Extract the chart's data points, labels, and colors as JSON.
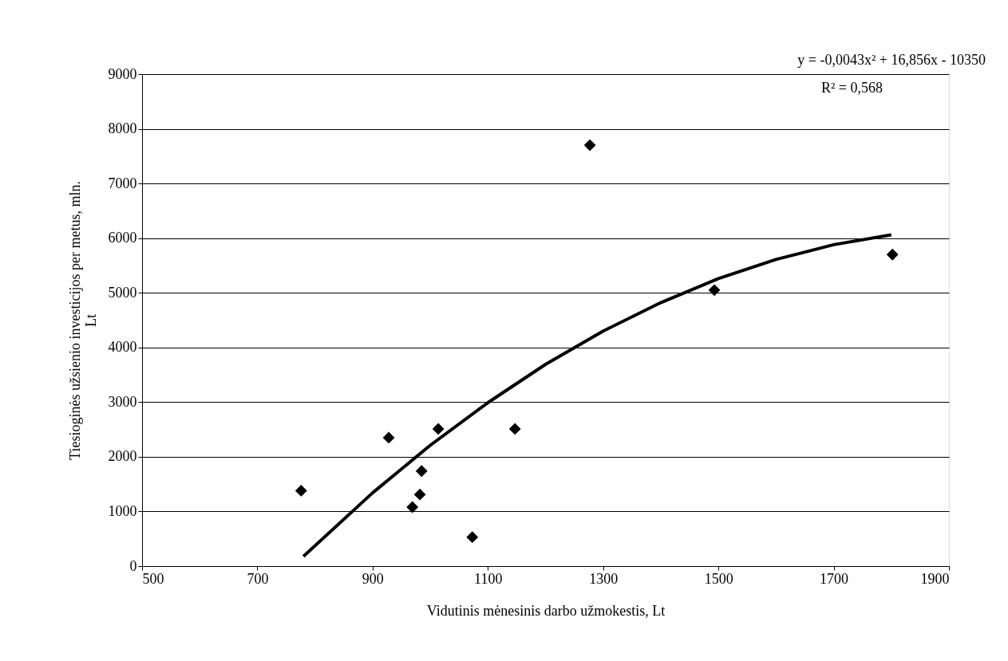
{
  "chart_data": {
    "type": "scatter",
    "xlabel": "Vidutinis mėnesinis darbo užmokestis, Lt",
    "ylabel": "Tiesioginės užsienio investicijos per metus, mln.\nLt",
    "xlim": [
      500,
      1900
    ],
    "xticks": [
      500,
      700,
      900,
      1100,
      1300,
      1500,
      1700,
      1900
    ],
    "ylim": [
      0,
      9000
    ],
    "yticks": [
      0,
      1000,
      2000,
      3000,
      4000,
      5000,
      6000,
      7000,
      8000,
      9000
    ],
    "grid": "y",
    "annotations": [
      "y = -0,0043x² + 16,856x - 10350",
      "R² = 0,568"
    ],
    "series": [
      {
        "color": "#000000",
        "marker": "diamond",
        "x": [
          776,
          928,
          969,
          982,
          985,
          1014,
          1073,
          1147,
          1277,
          1493,
          1802
        ],
        "values": [
          1380,
          2350,
          1080,
          1310,
          1740,
          2510,
          530,
          2510,
          7700,
          5050,
          5700
        ]
      },
      {
        "type": "line",
        "color": "#000000",
        "marker": "none",
        "line_style": "solid",
        "x": [
          780,
          900,
          1000,
          1100,
          1200,
          1300,
          1400,
          1500,
          1600,
          1700,
          1800
        ],
        "values": [
          180,
          1340,
          2210,
          2990,
          3690,
          4300,
          4820,
          5260,
          5610,
          5880,
          6060
        ]
      }
    ]
  }
}
